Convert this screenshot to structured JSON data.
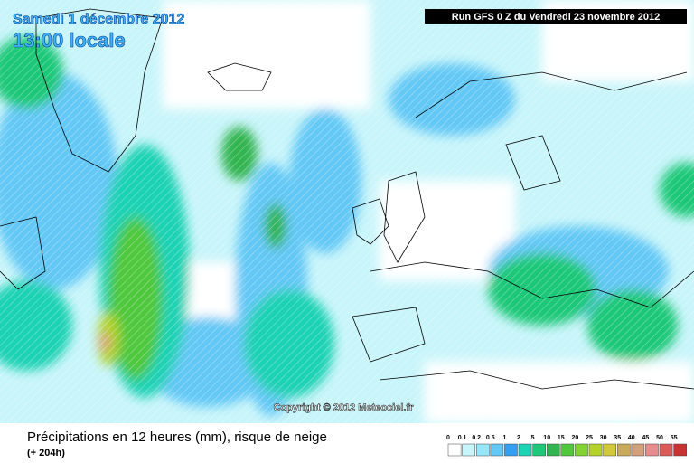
{
  "header": {
    "date": "Samedi 1 décembre 2012",
    "time": "13:00 locale",
    "run": "Run GFS 0 Z du Vendredi 23 novembre 2012"
  },
  "copyright": "Copyright © 2012 Meteociel.fr",
  "caption": {
    "title": "Précipitations en 12 heures (mm), risque de neige",
    "lead": "(+ 204h)"
  },
  "legend": {
    "labels": [
      "0",
      "0.1",
      "0.2",
      "0.5",
      "1",
      "2",
      "5",
      "10",
      "15",
      "20",
      "25",
      "30",
      "35",
      "40",
      "45",
      "50",
      "55"
    ],
    "colors": [
      "#ffffff",
      "#c8f5fa",
      "#96e6fa",
      "#64c8f5",
      "#32a0f0",
      "#1ed2b4",
      "#1ec878",
      "#32b450",
      "#50c83c",
      "#82d232",
      "#b4d228",
      "#d2c83c",
      "#c8aa5a",
      "#d2a07d",
      "#e68c8c",
      "#dc5a5a",
      "#c83232"
    ]
  }
}
